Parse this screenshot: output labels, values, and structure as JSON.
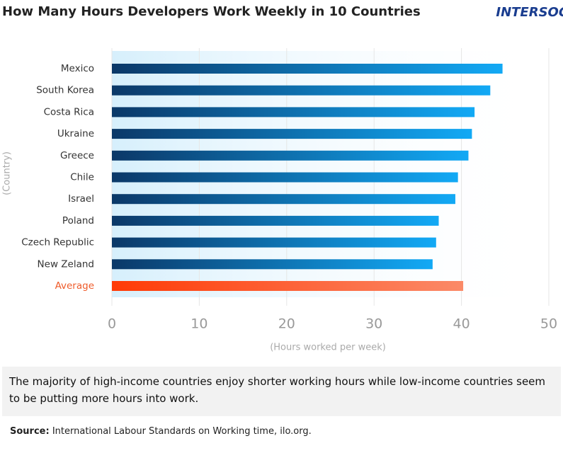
{
  "chart_data": {
    "type": "barh",
    "title": "How Many Hours Developers Work Weekly in 10 Countries",
    "logo": "INTERSOG",
    "categories": [
      "Mexico",
      "South Korea",
      "Costa Rica",
      "Ukraine",
      "Greece",
      "Chile",
      "Israel",
      "Poland",
      "Czech Republic",
      "New Zeland",
      "Average"
    ],
    "values": [
      44.7,
      43.3,
      41.5,
      41.2,
      40.8,
      39.6,
      39.3,
      37.4,
      37.1,
      36.7,
      40.2
    ],
    "colors": [
      [
        "#0b3868",
        "#12a9f5"
      ],
      [
        "#0b3868",
        "#12a9f5"
      ],
      [
        "#0b3868",
        "#12a9f5"
      ],
      [
        "#0b3868",
        "#12a9f5"
      ],
      [
        "#0b3868",
        "#12a9f5"
      ],
      [
        "#0b3868",
        "#12a9f5"
      ],
      [
        "#0b3868",
        "#12a9f5"
      ],
      [
        "#0b3868",
        "#12a9f5"
      ],
      [
        "#0b3868",
        "#12a9f5"
      ],
      [
        "#0b3868",
        "#12a9f5"
      ],
      [
        "#ff3a06",
        "#fb8a68"
      ]
    ],
    "label_colors": [
      "#333333",
      "#333333",
      "#333333",
      "#333333",
      "#333333",
      "#333333",
      "#333333",
      "#333333",
      "#333333",
      "#333333",
      "#ef5b2a"
    ],
    "xlim": [
      0,
      50
    ],
    "xticks": [
      0,
      10,
      20,
      30,
      40,
      50
    ],
    "grid": true,
    "xlabel": "(Hours worked per week)",
    "ylabel": "(Country)",
    "caption": "The majority of high-income countries enjoy shorter working hours while low-income countries seem to be putting more hours into work.",
    "source_label": "Source:",
    "source_text": "International Labour Standards on Working time, ilo.org."
  }
}
